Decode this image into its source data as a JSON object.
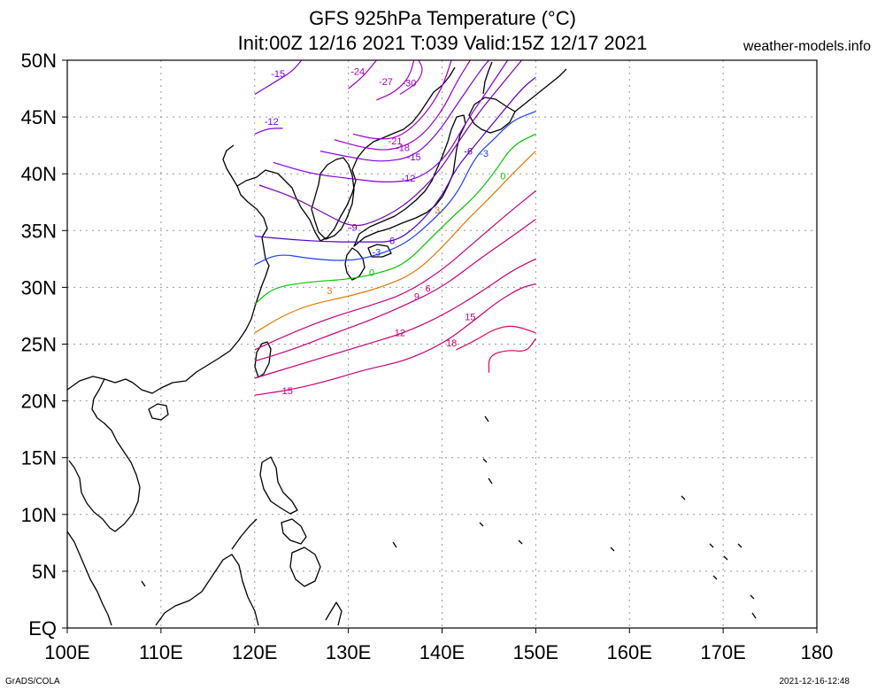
{
  "title_line1": "GFS 925hPa Temperature (°C)",
  "title_line2": "Init:00Z 12/16 2021 T:039 Valid:15Z 12/17 2021",
  "brand": "weather-models.info",
  "footer_left": "GrADS/COLA",
  "footer_right": "2021-12-16-12:48",
  "colors": {
    "land": "#000000",
    "grid": "#999999"
  },
  "chart_data": {
    "type": "map-contour",
    "lon_range": [
      100,
      180
    ],
    "lat_range": [
      0,
      50
    ],
    "x_ticks": [
      "100E",
      "110E",
      "120E",
      "130E",
      "140E",
      "150E",
      "160E",
      "170E",
      "180"
    ],
    "y_ticks": [
      "50N",
      "45N",
      "40N",
      "35N",
      "30N",
      "25N",
      "20N",
      "15N",
      "10N",
      "5N",
      "EQ"
    ],
    "grid": true,
    "data_extent": {
      "lon": [
        120,
        150
      ],
      "lat": [
        20,
        50
      ]
    },
    "contours": [
      {
        "level": -30,
        "color": "#a000c8"
      },
      {
        "level": -27,
        "color": "#a000c8"
      },
      {
        "level": -24,
        "color": "#a000c8"
      },
      {
        "level": -21,
        "color": "#a000c8"
      },
      {
        "level": -18,
        "color": "#a000c8"
      },
      {
        "level": -15,
        "color": "#8200dc"
      },
      {
        "level": -12,
        "color": "#8200dc"
      },
      {
        "level": -9,
        "color": "#7800b4"
      },
      {
        "level": -6,
        "color": "#5000c8"
      },
      {
        "level": -3,
        "color": "#1e3cff"
      },
      {
        "level": 0,
        "color": "#00c800"
      },
      {
        "level": 3,
        "color": "#e67800"
      },
      {
        "level": 6,
        "color": "#c8007a"
      },
      {
        "level": 9,
        "color": "#c8007a"
      },
      {
        "level": 12,
        "color": "#c8007a"
      },
      {
        "level": 15,
        "color": "#c8007a"
      },
      {
        "level": 18,
        "color": "#e6005a"
      }
    ],
    "contour_labels": [
      {
        "text": "-15",
        "lon": 122.5,
        "lat": 48.5,
        "level": -15
      },
      {
        "text": "-24",
        "lon": 131.0,
        "lat": 48.7,
        "level": -24
      },
      {
        "text": "-27",
        "lon": 134.0,
        "lat": 47.8,
        "level": -27
      },
      {
        "text": "-30",
        "lon": 136.5,
        "lat": 47.7,
        "level": -30
      },
      {
        "text": "-12",
        "lon": 121.8,
        "lat": 44.3,
        "level": -12
      },
      {
        "text": "-21",
        "lon": 135.0,
        "lat": 42.6,
        "level": -21
      },
      {
        "text": "-18",
        "lon": 135.8,
        "lat": 42.0,
        "level": -18
      },
      {
        "text": "-15",
        "lon": 137.0,
        "lat": 41.2,
        "level": -15
      },
      {
        "text": "-12",
        "lon": 136.4,
        "lat": 39.3,
        "level": -12
      },
      {
        "text": "-6",
        "lon": 142.8,
        "lat": 41.7,
        "level": -6
      },
      {
        "text": "-3",
        "lon": 144.5,
        "lat": 41.5,
        "level": -3
      },
      {
        "text": "-9",
        "lon": 130.5,
        "lat": 35.0,
        "level": -9
      },
      {
        "text": "-6",
        "lon": 134.5,
        "lat": 33.8,
        "level": -6
      },
      {
        "text": "-3",
        "lon": 133.0,
        "lat": 32.8,
        "level": -3
      },
      {
        "text": "0",
        "lon": 132.5,
        "lat": 31.0,
        "level": 0
      },
      {
        "text": "3",
        "lon": 128.0,
        "lat": 29.4,
        "level": 3
      },
      {
        "text": "6",
        "lon": 138.5,
        "lat": 29.6,
        "level": 6
      },
      {
        "text": "9",
        "lon": 137.3,
        "lat": 28.9,
        "level": 9
      },
      {
        "text": "12",
        "lon": 135.5,
        "lat": 25.7,
        "level": 12
      },
      {
        "text": "15",
        "lon": 143.0,
        "lat": 27.1,
        "level": 15
      },
      {
        "text": "18",
        "lon": 141.0,
        "lat": 24.8,
        "level": 18
      },
      {
        "text": "15",
        "lon": 123.5,
        "lat": 20.6,
        "level": 15
      },
      {
        "text": "0",
        "lon": 146.5,
        "lat": 39.5,
        "level": 0
      },
      {
        "text": "3",
        "lon": 139.5,
        "lat": 36.5,
        "level": 3
      }
    ],
    "isotherms": [
      {
        "level": -30,
        "points": [
          [
            135.5,
            47.0
          ],
          [
            136.5,
            47.5
          ],
          [
            137.5,
            48.2
          ],
          [
            138.0,
            49.2
          ],
          [
            137.5,
            50.0
          ]
        ]
      },
      {
        "level": -27,
        "points": [
          [
            133.0,
            46.5
          ],
          [
            135.0,
            47.2
          ],
          [
            136.5,
            48.5
          ],
          [
            137.0,
            50.0
          ]
        ]
      },
      {
        "level": -24,
        "points": [
          [
            130.0,
            47.5
          ],
          [
            131.5,
            48.5
          ],
          [
            132.5,
            49.5
          ],
          [
            133.0,
            50.0
          ]
        ]
      },
      {
        "level": -21,
        "points": [
          [
            130.5,
            43.5
          ],
          [
            133.0,
            43.0
          ],
          [
            135.5,
            43.2
          ],
          [
            138.0,
            45.0
          ],
          [
            140.0,
            47.5
          ],
          [
            141.0,
            50.0
          ]
        ]
      },
      {
        "level": -18,
        "points": [
          [
            128.5,
            43.0
          ],
          [
            131.5,
            42.3
          ],
          [
            134.5,
            42.0
          ],
          [
            137.5,
            43.0
          ],
          [
            140.0,
            45.5
          ],
          [
            141.5,
            48.0
          ],
          [
            143.0,
            50.0
          ]
        ]
      },
      {
        "level": -15,
        "points": [
          [
            120.0,
            47.0
          ],
          [
            122.0,
            48.0
          ],
          [
            124.0,
            49.0
          ],
          [
            125.0,
            50.0
          ]
        ]
      },
      {
        "level": -15,
        "points": [
          [
            127.0,
            42.0
          ],
          [
            130.0,
            41.5
          ],
          [
            133.5,
            41.0
          ],
          [
            137.0,
            41.5
          ],
          [
            139.5,
            43.5
          ],
          [
            141.5,
            46.0
          ],
          [
            144.0,
            49.0
          ],
          [
            145.0,
            50.0
          ]
        ]
      },
      {
        "level": -12,
        "points": [
          [
            120.0,
            43.5
          ],
          [
            121.5,
            44.0
          ],
          [
            123.0,
            44.0
          ]
        ]
      },
      {
        "level": -12,
        "points": [
          [
            122.0,
            41.0
          ],
          [
            126.0,
            40.0
          ],
          [
            130.0,
            39.6
          ],
          [
            134.0,
            39.2
          ],
          [
            137.5,
            39.5
          ],
          [
            140.5,
            41.5
          ],
          [
            142.5,
            44.5
          ],
          [
            145.0,
            47.5
          ],
          [
            147.0,
            50.0
          ]
        ]
      },
      {
        "level": -9,
        "points": [
          [
            120.5,
            39.0
          ],
          [
            124.0,
            38.0
          ],
          [
            127.5,
            36.5
          ],
          [
            130.5,
            35.2
          ],
          [
            133.5,
            36.0
          ],
          [
            136.5,
            37.5
          ],
          [
            139.5,
            40.0
          ],
          [
            141.5,
            42.5
          ],
          [
            144.0,
            45.5
          ],
          [
            146.5,
            48.0
          ],
          [
            148.5,
            50.0
          ]
        ]
      },
      {
        "level": -6,
        "points": [
          [
            120.0,
            34.5
          ],
          [
            124.0,
            34.2
          ],
          [
            128.0,
            34.0
          ],
          [
            132.0,
            34.0
          ],
          [
            135.0,
            34.0
          ],
          [
            137.5,
            35.5
          ],
          [
            140.0,
            38.0
          ],
          [
            141.5,
            40.5
          ],
          [
            143.5,
            42.5
          ],
          [
            146.0,
            45.0
          ],
          [
            148.5,
            47.5
          ],
          [
            150.0,
            48.5
          ]
        ]
      },
      {
        "level": -3,
        "points": [
          [
            120.0,
            32.0
          ],
          [
            122.5,
            33.0
          ],
          [
            126.0,
            32.5
          ],
          [
            130.0,
            32.3
          ],
          [
            133.0,
            32.8
          ],
          [
            136.0,
            33.8
          ],
          [
            138.5,
            35.5
          ],
          [
            141.5,
            38.0
          ],
          [
            143.5,
            41.5
          ],
          [
            145.5,
            43.0
          ],
          [
            147.5,
            44.7
          ],
          [
            150.0,
            45.5
          ]
        ]
      },
      {
        "level": 0,
        "points": [
          [
            120.0,
            28.5
          ],
          [
            122.0,
            30.0
          ],
          [
            126.0,
            30.5
          ],
          [
            130.0,
            30.7
          ],
          [
            133.0,
            31.2
          ],
          [
            136.0,
            32.0
          ],
          [
            139.0,
            34.5
          ],
          [
            141.5,
            36.5
          ],
          [
            143.5,
            38.0
          ],
          [
            145.5,
            40.0
          ],
          [
            147.5,
            42.5
          ],
          [
            150.0,
            43.5
          ]
        ]
      },
      {
        "level": 3,
        "points": [
          [
            120.0,
            26.0
          ],
          [
            123.0,
            27.5
          ],
          [
            126.0,
            28.5
          ],
          [
            130.0,
            29.2
          ],
          [
            133.5,
            30.0
          ],
          [
            137.0,
            31.2
          ],
          [
            140.0,
            33.5
          ],
          [
            142.5,
            35.8
          ],
          [
            145.0,
            37.8
          ],
          [
            147.5,
            40.0
          ],
          [
            150.0,
            42.0
          ]
        ]
      },
      {
        "level": 6,
        "points": [
          [
            120.0,
            24.5
          ],
          [
            124.0,
            26.0
          ],
          [
            128.0,
            27.3
          ],
          [
            132.0,
            28.3
          ],
          [
            136.0,
            29.4
          ],
          [
            140.0,
            31.5
          ],
          [
            143.5,
            34.0
          ],
          [
            147.0,
            36.5
          ],
          [
            150.0,
            38.5
          ]
        ]
      },
      {
        "level": 9,
        "points": [
          [
            120.0,
            23.5
          ],
          [
            124.0,
            24.5
          ],
          [
            128.0,
            25.8
          ],
          [
            132.0,
            27.0
          ],
          [
            136.0,
            28.4
          ],
          [
            140.0,
            30.0
          ],
          [
            144.0,
            32.5
          ],
          [
            147.5,
            34.5
          ],
          [
            150.0,
            36.0
          ]
        ]
      },
      {
        "level": 12,
        "points": [
          [
            120.0,
            22.0
          ],
          [
            124.0,
            23.0
          ],
          [
            128.0,
            24.0
          ],
          [
            132.0,
            25.0
          ],
          [
            136.0,
            26.0
          ],
          [
            140.0,
            27.5
          ],
          [
            144.0,
            29.5
          ],
          [
            147.5,
            31.5
          ],
          [
            150.0,
            32.5
          ]
        ]
      },
      {
        "level": 15,
        "points": [
          [
            120.0,
            20.5
          ],
          [
            124.0,
            21.0
          ],
          [
            128.0,
            21.8
          ],
          [
            132.0,
            22.8
          ],
          [
            136.0,
            23.5
          ],
          [
            140.0,
            25.0
          ],
          [
            143.0,
            26.8
          ],
          [
            146.0,
            28.8
          ],
          [
            148.5,
            30.0
          ],
          [
            150.0,
            30.3
          ]
        ]
      },
      {
        "level": 18,
        "points": [
          [
            141.5,
            24.5
          ],
          [
            143.5,
            25.3
          ],
          [
            145.5,
            26.3
          ],
          [
            147.5,
            26.7
          ],
          [
            150.0,
            26.0
          ]
        ]
      },
      {
        "level": 18,
        "points": [
          [
            145.0,
            22.5
          ],
          [
            145.0,
            24.0
          ],
          [
            147.0,
            24.5
          ],
          [
            149.0,
            24.3
          ],
          [
            150.0,
            25.5
          ]
        ]
      }
    ]
  }
}
